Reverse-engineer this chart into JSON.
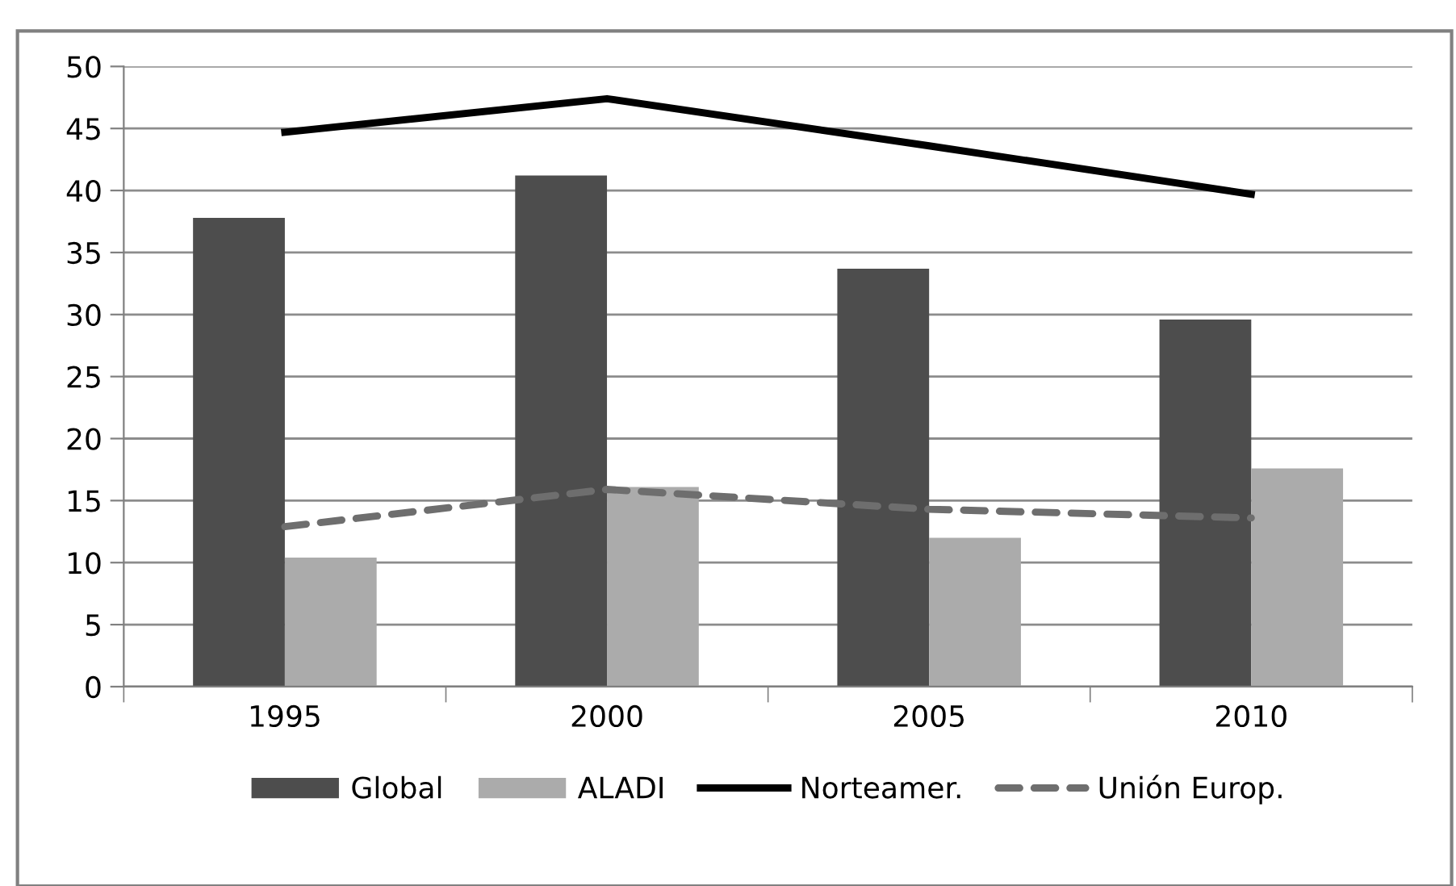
{
  "chart_data": {
    "type": "bar",
    "categories": [
      "1995",
      "2000",
      "2005",
      "2010"
    ],
    "series": [
      {
        "name": "Global",
        "color": "#4d4d4d",
        "values": [
          37.8,
          41.2,
          33.7,
          29.6
        ]
      },
      {
        "name": "ALADI",
        "color": "#ababab",
        "values": [
          10.4,
          16.1,
          12.0,
          17.6
        ]
      },
      {
        "name": "Norteamer.",
        "type": "line",
        "color": "#000000",
        "line_style": "solid",
        "values": [
          44.7,
          47.4,
          43.6,
          39.7
        ]
      },
      {
        "name": "Unión Europ.",
        "type": "line",
        "color": "#6e6e6e",
        "line_style": "dashed",
        "values": [
          12.9,
          15.9,
          14.3,
          13.6
        ]
      }
    ],
    "ylim": [
      0,
      50
    ],
    "yticks": [
      0,
      5,
      10,
      15,
      20,
      25,
      30,
      35,
      40,
      45,
      50
    ],
    "grid": "y",
    "legend": "bottom",
    "marker": "none"
  }
}
